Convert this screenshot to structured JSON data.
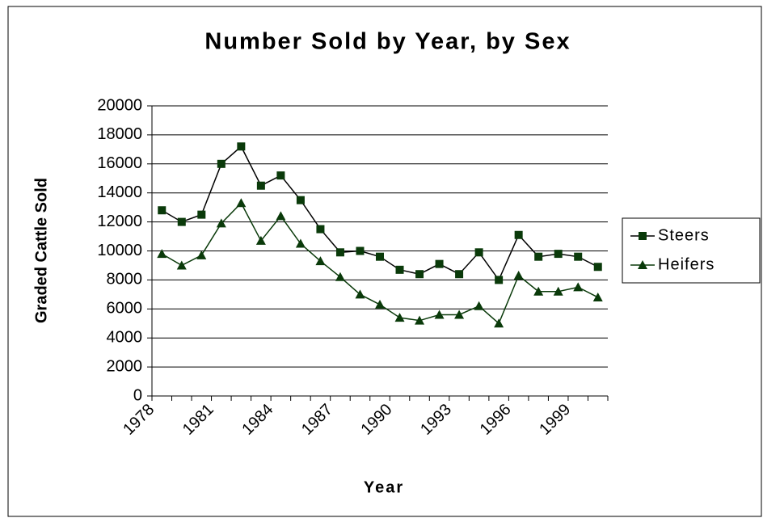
{
  "chart_data": {
    "type": "line",
    "title": "Number Sold by Year, by Sex",
    "x_label": "Year",
    "y_label": "Graded Cattle Sold",
    "categories": [
      "1978",
      null,
      null,
      "1981",
      null,
      null,
      "1984",
      null,
      null,
      "1987",
      null,
      null,
      "1990",
      null,
      null,
      "1993",
      null,
      null,
      "1996",
      null,
      null,
      "1999",
      null
    ],
    "series": [
      {
        "name": "Steers",
        "color": "#0a3a0a",
        "line_color": "#000000",
        "marker": "square",
        "values": [
          12800,
          12000,
          12500,
          16000,
          17200,
          14500,
          15200,
          13500,
          11500,
          9900,
          10000,
          9600,
          8700,
          8400,
          9100,
          8400,
          9900,
          8000,
          11100,
          9600,
          9800,
          9600,
          8900
        ]
      },
      {
        "name": "Heifers",
        "color": "#0a3a0a",
        "line_color": "#0a3a0a",
        "marker": "triangle",
        "values": [
          9800,
          9000,
          9700,
          11900,
          13300,
          10700,
          12400,
          10500,
          9300,
          8200,
          7000,
          6300,
          5400,
          5200,
          5600,
          5600,
          6200,
          5000,
          8300,
          7200,
          7200,
          7500,
          6800
        ]
      }
    ],
    "ylim": [
      0,
      20000
    ],
    "yticks": [
      0,
      2000,
      4000,
      6000,
      8000,
      10000,
      12000,
      14000,
      16000,
      18000,
      20000
    ],
    "grid": true,
    "legend": "right"
  }
}
